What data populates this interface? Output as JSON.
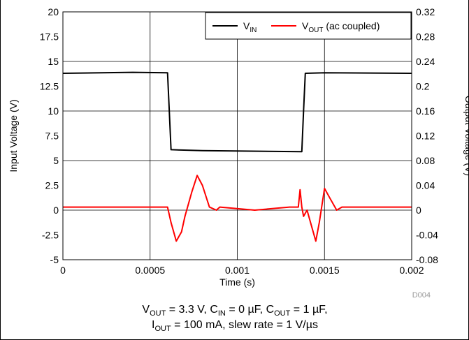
{
  "chart_data": {
    "type": "line",
    "xlabel": "Time (s)",
    "ylabel_left": "Input Voltage (V)",
    "ylabel_right": "Output Voltage (V)",
    "xlim": [
      0,
      0.002
    ],
    "ylim_left": [
      -5,
      20
    ],
    "ylim_right": [
      -0.08,
      0.32
    ],
    "x_ticks": [
      "0",
      "0.0005",
      "0.001",
      "0.0015",
      "0.002"
    ],
    "y_ticks_left": [
      "-5",
      "-2.5",
      "0",
      "2.5",
      "5",
      "7.5",
      "10",
      "12.5",
      "15",
      "17.5",
      "20"
    ],
    "y_ticks_right": [
      "-0.08",
      "-0.04",
      "0",
      "0.04",
      "0.08",
      "0.12",
      "0.16",
      "0.2",
      "0.24",
      "0.28",
      "0.32"
    ],
    "grid": true,
    "legend_placement": "top-right",
    "legend": [
      {
        "main": "V",
        "sub": "IN",
        "suffix": ""
      },
      {
        "main": "V",
        "sub": "OUT",
        "suffix": " (ac coupled)"
      }
    ],
    "figure_code": "D004",
    "caption": {
      "line1": [
        {
          "t": "V"
        },
        {
          "t": "OUT",
          "sub": true
        },
        {
          "t": " = 3.3 V, C"
        },
        {
          "t": "IN",
          "sub": true
        },
        {
          "t": " = 0 µF, C"
        },
        {
          "t": "OUT",
          "sub": true
        },
        {
          "t": " = 1 µF,"
        }
      ],
      "line2": [
        {
          "t": "I"
        },
        {
          "t": "OUT",
          "sub": true
        },
        {
          "t": " = 100 mA, slew rate = 1 V/µs"
        }
      ]
    },
    "series": [
      {
        "name": "VIN",
        "axis": "left",
        "color": "#000000",
        "x": [
          0,
          0.0004,
          0.0006,
          0.00061,
          0.00062,
          0.0008,
          0.00137,
          0.00138,
          0.00139,
          0.0015,
          0.002
        ],
        "y": [
          13.8,
          13.9,
          13.85,
          10.0,
          6.1,
          6.0,
          5.9,
          10.0,
          13.8,
          13.85,
          13.8
        ]
      },
      {
        "name": "VOUT (ac coupled)",
        "axis": "right",
        "color": "#ff0000",
        "x": [
          0,
          0.0003,
          0.0006,
          0.00062,
          0.00065,
          0.00068,
          0.0007,
          0.00074,
          0.00077,
          0.0008,
          0.00084,
          0.00088,
          0.0009,
          0.0011,
          0.0013,
          0.00135,
          0.00136,
          0.00137,
          0.00138,
          0.0014,
          0.00142,
          0.00145,
          0.00147,
          0.0015,
          0.00153,
          0.00157,
          0.0016,
          0.0018,
          0.002
        ],
        "y": [
          0.005,
          0.005,
          0.005,
          -0.02,
          -0.05,
          -0.035,
          -0.01,
          0.03,
          0.056,
          0.04,
          0.005,
          0.0,
          0.005,
          0.0,
          0.005,
          0.005,
          0.033,
          0.005,
          -0.01,
          0.0,
          -0.02,
          -0.05,
          -0.02,
          0.035,
          0.02,
          0.0,
          0.005,
          0.005,
          0.005
        ]
      }
    ]
  }
}
